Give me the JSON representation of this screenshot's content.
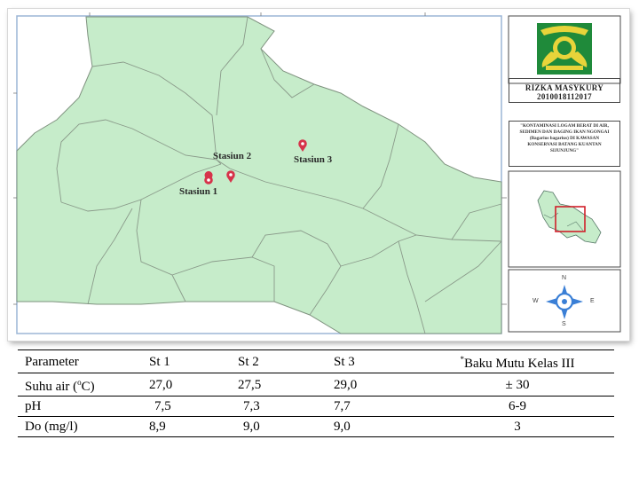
{
  "map": {
    "stations": [
      {
        "label": "Stasiun 1"
      },
      {
        "label": "Stasiun 2"
      },
      {
        "label": "Stasiun 3"
      }
    ],
    "author_name": "RIZKA MASYKURY",
    "author_id": "2010018112017",
    "thesis_title": "\"KONTAMINASI LOGAM BERAT DI AIR, SEDIMEN DAN DAGING IKAN NGONGAI (Bagarius bagarius) DI KAWASAN KONSERVASI BATANG KUANTAN SIJUNJUNG\"",
    "compass": {
      "n": "N",
      "s": "S",
      "e": "E",
      "w": "W"
    },
    "colors": {
      "land": "#c6ecca",
      "border": "#8a9a8a",
      "pin": "#d6334a",
      "logo": "#1f8a3a"
    }
  },
  "table": {
    "headers": [
      "Parameter",
      "St 1",
      "St 2",
      "St 3",
      "*",
      "Baku Mutu Kelas III"
    ],
    "rows": [
      {
        "param": "Suhu air (",
        "param_sup": "o",
        "param_end": "C)",
        "st1": "27,0",
        "st2": "27,5",
        "st3": "29,0",
        "baku": "± 30"
      },
      {
        "param": "pH",
        "st1": "7,5",
        "st2": "7,3",
        "st3": "7,7",
        "baku": "6-9"
      },
      {
        "param": "Do (mg/l)",
        "st1": "8,9",
        "st2": "9,0",
        "st3": "9,0",
        "baku": "3"
      }
    ]
  }
}
